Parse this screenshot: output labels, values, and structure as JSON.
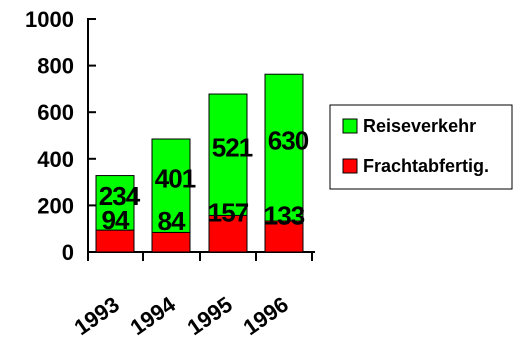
{
  "chart_data": {
    "type": "bar",
    "stacked": true,
    "title": "",
    "xlabel": "",
    "ylabel": "",
    "ylim": [
      0,
      1000
    ],
    "yticks": [
      0,
      200,
      400,
      600,
      800,
      1000
    ],
    "categories": [
      "1993",
      "1994",
      "1995",
      "1996"
    ],
    "series": [
      {
        "name": "Frachtabfertig.",
        "color": "#ff0000",
        "values": [
          94,
          84,
          157,
          133
        ]
      },
      {
        "name": "Reiseverkehr",
        "color": "#00ff00",
        "values": [
          234,
          401,
          521,
          630
        ]
      }
    ],
    "grid": false,
    "legend_position": "right"
  }
}
